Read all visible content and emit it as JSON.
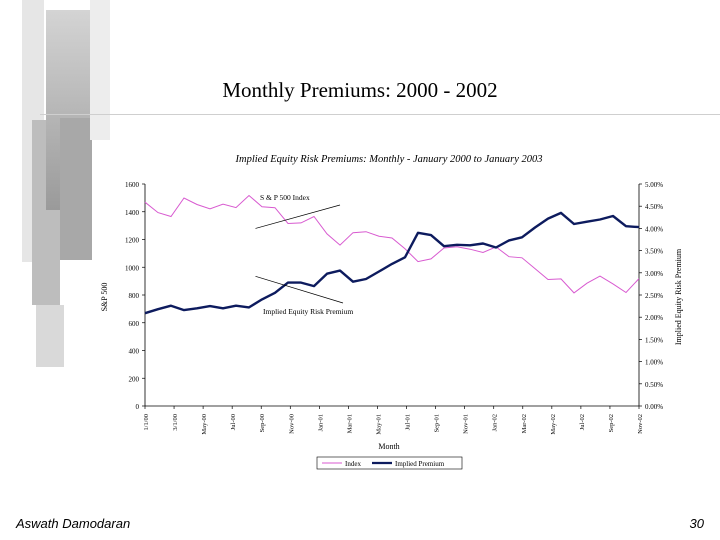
{
  "slide": {
    "title": "Monthly Premiums: 2000 - 2002",
    "author": "Aswath Damodaran",
    "page_number": "30"
  },
  "colors": {
    "index_line": "#d85ad0",
    "premium_line": "#0d1b5e",
    "decor_gray": "#c9c9c9"
  },
  "chart_data": {
    "type": "line",
    "title": "Implied Equity Risk Premiums: Monthly - January 2000 to January 2003",
    "xlabel": "Month",
    "ylabel_left": "S&P 500",
    "ylabel_right": "Implied Equity Risk Premium",
    "ylim_left": [
      0,
      1600
    ],
    "ylim_right": [
      0.0,
      5.0
    ],
    "yticks_left": [
      "0",
      "200",
      "400",
      "600",
      "800",
      "1000",
      "1200",
      "1400",
      "1600"
    ],
    "yticks_right": [
      "0.00%",
      "0.50%",
      "1.00%",
      "1.50%",
      "2.00%",
      "2.50%",
      "3.00%",
      "3.50%",
      "4.00%",
      "4.50%",
      "5.00%"
    ],
    "xticks": [
      "1/1/00",
      "3/1/00",
      "May-00",
      "Jul-00",
      "Sep-00",
      "Nov-00",
      "Jan-01",
      "Mar-01",
      "May-01",
      "Jul-01",
      "Sep-01",
      "Nov-01",
      "Jan-02",
      "Mar-02",
      "May-02",
      "Jul-02",
      "Sep-02",
      "Nov-02"
    ],
    "annotations": [
      "S & P 500 Index",
      "Implied Equity Risk Premium"
    ],
    "legend": {
      "position": "bottom",
      "entries": [
        "Index",
        "Implied Premium"
      ]
    },
    "series": [
      {
        "name": "Index",
        "axis": "left",
        "values": [
          1469,
          1394,
          1366,
          1499,
          1452,
          1421,
          1455,
          1430,
          1517,
          1436,
          1429,
          1315,
          1320,
          1366,
          1240,
          1160,
          1249,
          1256,
          1224,
          1211,
          1133,
          1041,
          1060,
          1139,
          1148,
          1130,
          1106,
          1147,
          1076,
          1068,
          990,
          912,
          916,
          815,
          885,
          936,
          880,
          818,
          918
        ]
      },
      {
        "name": "Implied Premium",
        "axis": "right",
        "values": [
          2.09,
          2.18,
          2.26,
          2.16,
          2.2,
          2.25,
          2.2,
          2.26,
          2.22,
          2.4,
          2.55,
          2.78,
          2.78,
          2.7,
          2.98,
          3.05,
          2.8,
          2.86,
          3.03,
          3.2,
          3.35,
          3.9,
          3.85,
          3.6,
          3.63,
          3.62,
          3.66,
          3.57,
          3.73,
          3.8,
          4.02,
          4.22,
          4.35,
          4.1,
          4.15,
          4.2,
          4.28,
          4.05,
          4.03
        ]
      }
    ]
  }
}
